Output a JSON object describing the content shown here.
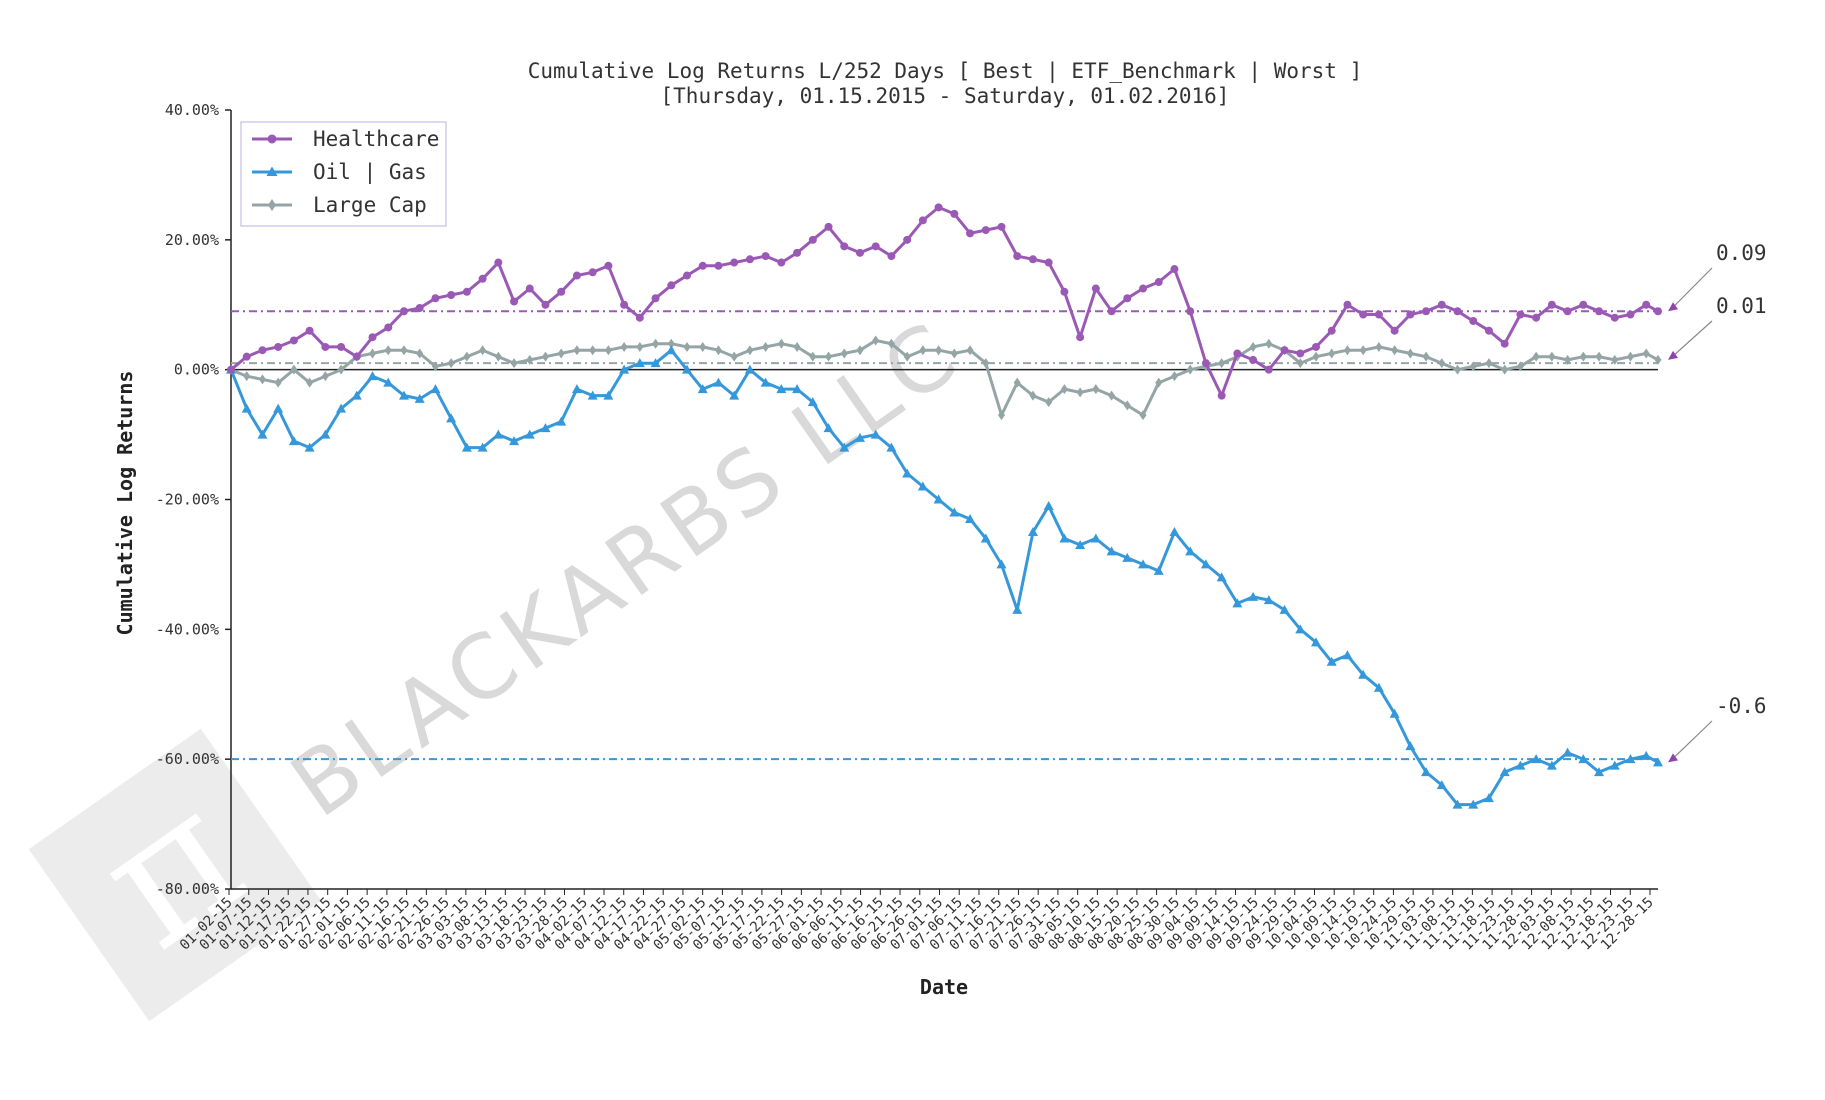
{
  "chart_data": {
    "type": "line",
    "title": "Cumulative Log Returns L/252 Days [ Best | ETF_Benchmark | Worst ]",
    "subtitle": "[Thursday, 01.15.2015 - Saturday, 01.02.2016]",
    "xlabel": "Date",
    "ylabel": "Cumulative Log Returns",
    "ylim": [
      -0.8,
      0.4
    ],
    "yticks": [
      0.4,
      0.2,
      0.0,
      -0.2,
      -0.4,
      -0.6,
      -0.8
    ],
    "ytick_labels": [
      "40.00%",
      "20.00%",
      "0.00%",
      "-20.00%",
      "-40.00%",
      "-60.00%",
      "-80.00%"
    ],
    "grid": false,
    "legend_position": "top-left",
    "x_ticks": [
      "01-02-15",
      "01-07-15",
      "01-12-15",
      "01-17-15",
      "01-22-15",
      "01-27-15",
      "02-01-15",
      "02-06-15",
      "02-11-15",
      "02-16-15",
      "02-21-15",
      "02-26-15",
      "03-03-15",
      "03-08-15",
      "03-13-15",
      "03-18-15",
      "03-23-15",
      "03-28-15",
      "04-02-15",
      "04-07-15",
      "04-12-15",
      "04-17-15",
      "04-22-15",
      "04-27-15",
      "05-02-15",
      "05-07-15",
      "05-12-15",
      "05-17-15",
      "05-22-15",
      "05-27-15",
      "06-01-15",
      "06-06-15",
      "06-11-15",
      "06-16-15",
      "06-21-15",
      "06-26-15",
      "07-01-15",
      "07-06-15",
      "07-11-15",
      "07-16-15",
      "07-21-15",
      "07-26-15",
      "07-31-15",
      "08-05-15",
      "08-10-15",
      "08-15-15",
      "08-20-15",
      "08-25-15",
      "08-30-15",
      "09-04-15",
      "09-09-15",
      "09-14-15",
      "09-19-15",
      "09-24-15",
      "09-29-15",
      "10-04-15",
      "10-09-15",
      "10-14-15",
      "10-19-15",
      "10-24-15",
      "10-29-15",
      "11-03-15",
      "11-08-15",
      "11-13-15",
      "11-18-15",
      "11-23-15",
      "11-28-15",
      "12-03-15",
      "12-08-15",
      "12-13-15",
      "12-18-15",
      "12-23-15",
      "12-28-15"
    ],
    "x": [
      0,
      4,
      8,
      12,
      16,
      20,
      24,
      28,
      32,
      36,
      40,
      44,
      48,
      52,
      56,
      60,
      64,
      68,
      72,
      76,
      80,
      84,
      88,
      92,
      96,
      100,
      104,
      108,
      112,
      116,
      120,
      124,
      128,
      132,
      136,
      140,
      144,
      148,
      152,
      156,
      160,
      164,
      168,
      172,
      176,
      180,
      184,
      188,
      192,
      196,
      200,
      204,
      208,
      212,
      216,
      220,
      224,
      228,
      232,
      236,
      240,
      244,
      248,
      252,
      256,
      260,
      264,
      268,
      272,
      276,
      280,
      284,
      288,
      292,
      296,
      300,
      304,
      308,
      312,
      316,
      320,
      324,
      328,
      332,
      336,
      340,
      344,
      348,
      352,
      356,
      360,
      363
    ],
    "series": [
      {
        "name": "Healthcare",
        "color": "#9b59b6",
        "marker": "circle",
        "final_label": "0.09",
        "values": [
          0.0,
          0.02,
          0.03,
          0.035,
          0.045,
          0.06,
          0.035,
          0.035,
          0.02,
          0.05,
          0.065,
          0.09,
          0.095,
          0.11,
          0.115,
          0.12,
          0.14,
          0.165,
          0.105,
          0.125,
          0.1,
          0.12,
          0.145,
          0.15,
          0.16,
          0.1,
          0.08,
          0.11,
          0.13,
          0.145,
          0.16,
          0.16,
          0.165,
          0.17,
          0.175,
          0.165,
          0.18,
          0.2,
          0.22,
          0.19,
          0.18,
          0.19,
          0.175,
          0.2,
          0.23,
          0.25,
          0.24,
          0.21,
          0.215,
          0.22,
          0.175,
          0.17,
          0.165,
          0.12,
          0.05,
          0.125,
          0.09,
          0.11,
          0.125,
          0.135,
          0.155,
          0.09,
          0.01,
          -0.04,
          0.025,
          0.015,
          0.0,
          0.03,
          0.025,
          0.035,
          0.06,
          0.1,
          0.085,
          0.085,
          0.06,
          0.085,
          0.09,
          0.1,
          0.09,
          0.075,
          0.06,
          0.04,
          0.085,
          0.08,
          0.1,
          0.09,
          0.1,
          0.09,
          0.08,
          0.085,
          0.1,
          0.09
        ]
      },
      {
        "name": "Oil | Gas",
        "color": "#3498db",
        "marker": "triangle",
        "final_label": "-0.6",
        "values": [
          0.0,
          -0.06,
          -0.1,
          -0.06,
          -0.11,
          -0.12,
          -0.1,
          -0.06,
          -0.04,
          -0.01,
          -0.02,
          -0.04,
          -0.045,
          -0.03,
          -0.075,
          -0.12,
          -0.12,
          -0.1,
          -0.11,
          -0.1,
          -0.09,
          -0.08,
          -0.03,
          -0.04,
          -0.04,
          0.0,
          0.01,
          0.01,
          0.03,
          0.0,
          -0.03,
          -0.02,
          -0.04,
          0.0,
          -0.02,
          -0.03,
          -0.03,
          -0.05,
          -0.09,
          -0.12,
          -0.105,
          -0.1,
          -0.12,
          -0.16,
          -0.18,
          -0.2,
          -0.22,
          -0.23,
          -0.26,
          -0.3,
          -0.37,
          -0.25,
          -0.21,
          -0.26,
          -0.27,
          -0.26,
          -0.28,
          -0.29,
          -0.3,
          -0.31,
          -0.25,
          -0.28,
          -0.3,
          -0.32,
          -0.36,
          -0.35,
          -0.355,
          -0.37,
          -0.4,
          -0.42,
          -0.45,
          -0.44,
          -0.47,
          -0.49,
          -0.53,
          -0.58,
          -0.62,
          -0.64,
          -0.67,
          -0.67,
          -0.66,
          -0.62,
          -0.61,
          -0.6,
          -0.61,
          -0.59,
          -0.6,
          -0.62,
          -0.61,
          -0.6,
          -0.595,
          -0.605
        ]
      },
      {
        "name": "Large Cap",
        "color": "#95a5a6",
        "marker": "diamond",
        "final_label": "0.01",
        "values": [
          0.0,
          -0.01,
          -0.015,
          -0.02,
          0.0,
          -0.02,
          -0.01,
          0.0,
          0.02,
          0.025,
          0.03,
          0.03,
          0.025,
          0.005,
          0.01,
          0.02,
          0.03,
          0.02,
          0.01,
          0.015,
          0.02,
          0.025,
          0.03,
          0.03,
          0.03,
          0.035,
          0.035,
          0.04,
          0.04,
          0.035,
          0.035,
          0.03,
          0.02,
          0.03,
          0.035,
          0.04,
          0.035,
          0.02,
          0.02,
          0.025,
          0.03,
          0.045,
          0.04,
          0.02,
          0.03,
          0.03,
          0.025,
          0.03,
          0.01,
          -0.07,
          -0.02,
          -0.04,
          -0.05,
          -0.03,
          -0.035,
          -0.03,
          -0.04,
          -0.055,
          -0.07,
          -0.02,
          -0.01,
          0.0,
          0.005,
          0.01,
          0.02,
          0.035,
          0.04,
          0.03,
          0.01,
          0.02,
          0.025,
          0.03,
          0.03,
          0.035,
          0.03,
          0.025,
          0.02,
          0.01,
          0.0,
          0.005,
          0.01,
          0.0,
          0.005,
          0.02,
          0.02,
          0.015,
          0.02,
          0.02,
          0.015,
          0.02,
          0.025,
          0.015
        ]
      }
    ],
    "reference_lines": [
      {
        "value": 0.09,
        "color": "#9b59b6"
      },
      {
        "value": 0.01,
        "color": "#95a5a6"
      },
      {
        "value": -0.6,
        "color": "#3498db"
      },
      {
        "value": 0.0,
        "color": "#222222"
      }
    ]
  },
  "watermark": {
    "text": "BLACKARBS LLC",
    "logo_glyph": "π"
  }
}
